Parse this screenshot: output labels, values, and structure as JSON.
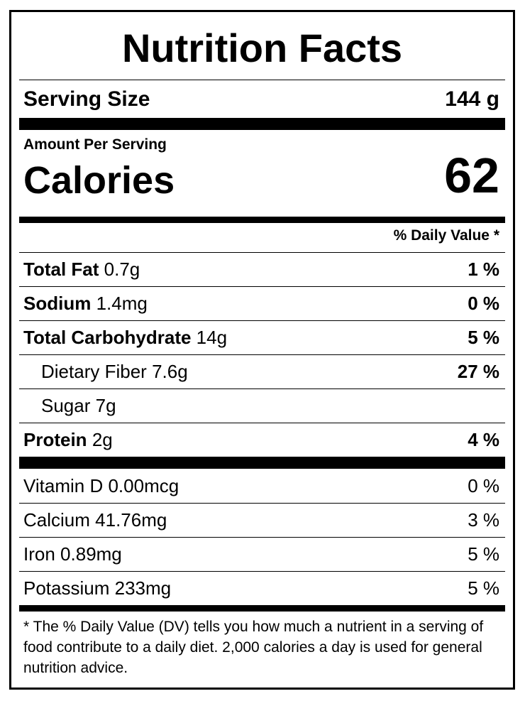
{
  "label": {
    "title": "Nutrition Facts",
    "serving_size_label": "Serving Size",
    "serving_size_value": "144 g",
    "amount_per_serving": "Amount Per Serving",
    "calories_label": "Calories",
    "calories_value": "62",
    "daily_value_header": "% Daily Value *",
    "nutrients": [
      {
        "name": "Total Fat",
        "amount": "0.7g",
        "dv": "1 %"
      },
      {
        "name": "Sodium",
        "amount": "1.4mg",
        "dv": "0 %"
      },
      {
        "name": "Total Carbohydrate",
        "amount": "14g",
        "dv": "5 %"
      },
      {
        "name": "Dietary Fiber",
        "amount": "7.6g",
        "dv": "27 %"
      },
      {
        "name": "Sugar",
        "amount": "7g",
        "dv": ""
      },
      {
        "name": "Protein",
        "amount": "2g",
        "dv": "4 %"
      }
    ],
    "vitamins": [
      {
        "name": "Vitamin D",
        "amount": "0.00mcg",
        "dv": "0 %"
      },
      {
        "name": "Calcium",
        "amount": "41.76mg",
        "dv": "3 %"
      },
      {
        "name": "Iron",
        "amount": "0.89mg",
        "dv": "5 %"
      },
      {
        "name": "Potassium",
        "amount": "233mg",
        "dv": "5 %"
      }
    ],
    "footnote": "* The % Daily Value (DV) tells you how much a nutrient in a serving of food contribute to a daily diet. 2,000 calories a day is used for general nutrition advice."
  }
}
